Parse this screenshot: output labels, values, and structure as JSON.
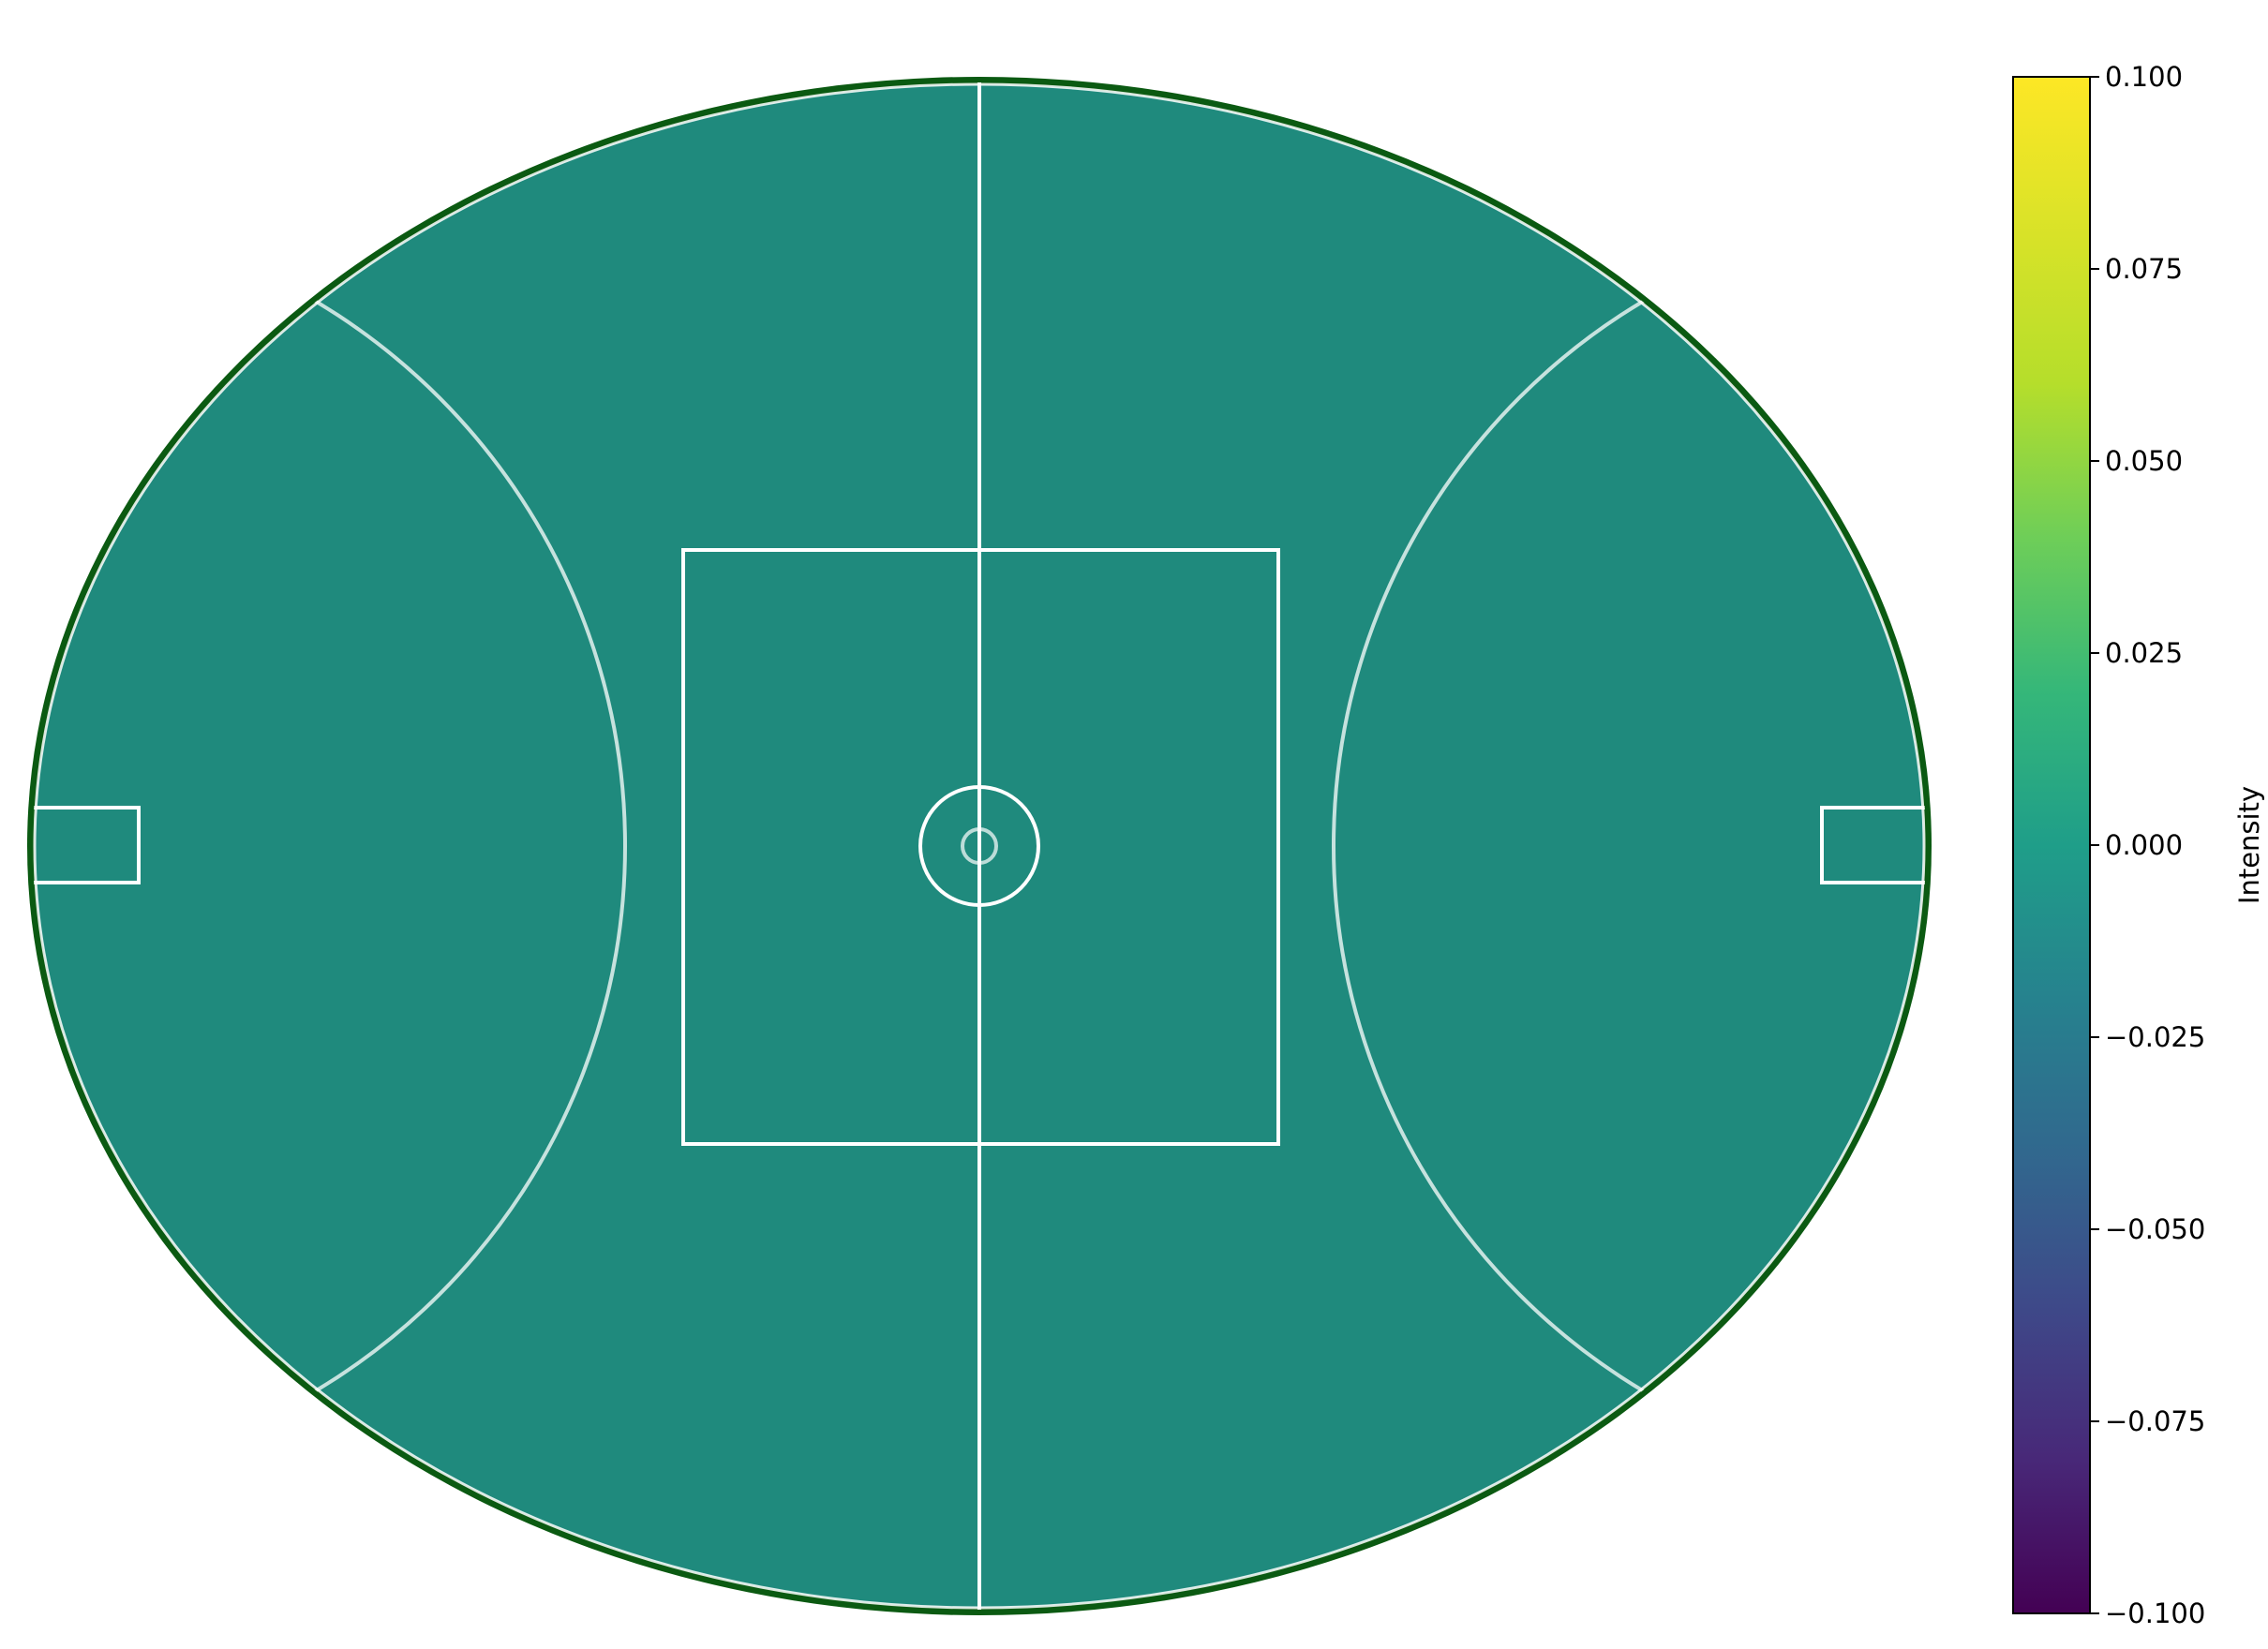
{
  "chart_data": {
    "type": "heatmap",
    "subject": "oval field with markings",
    "field_value": 0.0,
    "colormap": "viridis",
    "colorbar": {
      "label": "Intensity",
      "range": [
        -0.1,
        0.1
      ],
      "ticks": [
        -0.1,
        -0.075,
        -0.05,
        -0.025,
        0.0,
        0.025,
        0.05,
        0.075,
        0.1
      ],
      "tick_labels": [
        "−0.100",
        "−0.075",
        "−0.050",
        "−0.025",
        "0.000",
        "0.025",
        "0.050",
        "0.075",
        "0.100"
      ],
      "position": "right"
    },
    "colors": {
      "field_fill": "#1f8a7d",
      "field_edge": "#0b5a12",
      "line_color": "#ffffff"
    }
  }
}
